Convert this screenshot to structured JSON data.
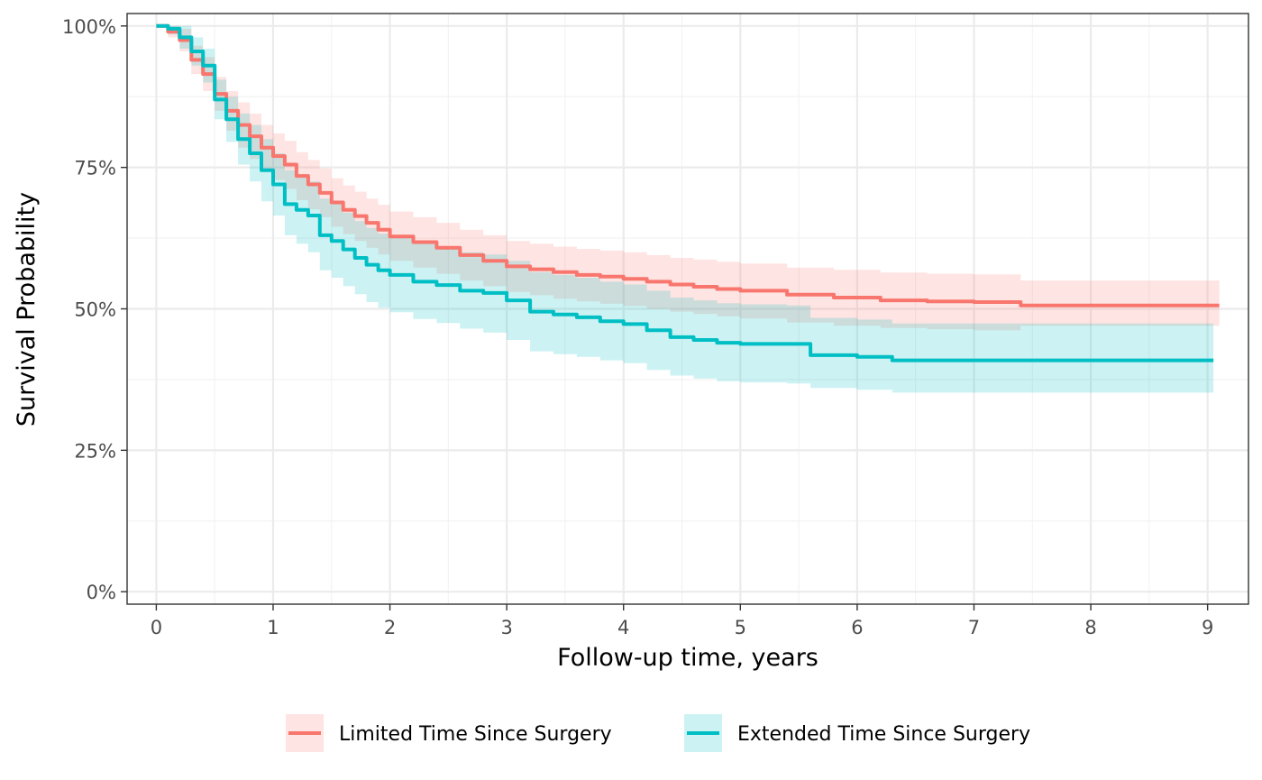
{
  "chart_data": {
    "type": "line",
    "subtype": "kaplan-meier step curves with confidence bands",
    "xlabel": "Follow-up time, years",
    "ylabel": "Survival Probability",
    "xlim": [
      -0.25,
      9.35
    ],
    "ylim": [
      -0.022,
      1.022
    ],
    "x_ticks": [
      0,
      1,
      2,
      3,
      4,
      5,
      6,
      7,
      8,
      9
    ],
    "x_tick_labels": [
      "0",
      "1",
      "2",
      "3",
      "4",
      "5",
      "6",
      "7",
      "8",
      "9"
    ],
    "y_ticks": [
      0,
      0.25,
      0.5,
      0.75,
      1.0
    ],
    "y_tick_labels": [
      "0%",
      "25%",
      "50%",
      "75%",
      "100%"
    ],
    "grid": true,
    "legend_position": "bottom",
    "series": [
      {
        "name": "Limited Time Since Surgery",
        "color": "#F8766D",
        "band_color": "#F8766D",
        "x": [
          0,
          0.1,
          0.2,
          0.3,
          0.4,
          0.5,
          0.6,
          0.7,
          0.8,
          0.9,
          1.0,
          1.1,
          1.2,
          1.3,
          1.4,
          1.5,
          1.6,
          1.7,
          1.8,
          1.9,
          2.0,
          2.2,
          2.4,
          2.6,
          2.8,
          3.0,
          3.2,
          3.4,
          3.6,
          3.8,
          4.0,
          4.2,
          4.4,
          4.6,
          4.8,
          5.0,
          5.4,
          5.8,
          6.2,
          6.6,
          7.0,
          7.4,
          8.0,
          9.1
        ],
        "y": [
          1.0,
          0.99,
          0.975,
          0.94,
          0.915,
          0.88,
          0.85,
          0.825,
          0.805,
          0.785,
          0.77,
          0.755,
          0.735,
          0.72,
          0.705,
          0.688,
          0.675,
          0.664,
          0.652,
          0.64,
          0.628,
          0.618,
          0.608,
          0.595,
          0.585,
          0.575,
          0.57,
          0.565,
          0.56,
          0.557,
          0.553,
          0.548,
          0.543,
          0.539,
          0.535,
          0.532,
          0.525,
          0.52,
          0.515,
          0.513,
          0.512,
          0.506,
          0.506,
          0.506
        ],
        "lower": [
          1.0,
          0.98,
          0.955,
          0.915,
          0.885,
          0.85,
          0.815,
          0.785,
          0.765,
          0.745,
          0.728,
          0.712,
          0.692,
          0.676,
          0.662,
          0.645,
          0.632,
          0.62,
          0.608,
          0.596,
          0.585,
          0.573,
          0.562,
          0.55,
          0.54,
          0.53,
          0.524,
          0.518,
          0.513,
          0.509,
          0.505,
          0.5,
          0.495,
          0.491,
          0.487,
          0.483,
          0.476,
          0.47,
          0.466,
          0.464,
          0.462,
          0.47,
          0.47,
          0.47
        ],
        "upper": [
          1.0,
          1.0,
          0.995,
          0.965,
          0.945,
          0.91,
          0.885,
          0.865,
          0.845,
          0.825,
          0.81,
          0.797,
          0.777,
          0.763,
          0.748,
          0.731,
          0.718,
          0.707,
          0.695,
          0.684,
          0.672,
          0.662,
          0.652,
          0.64,
          0.63,
          0.62,
          0.615,
          0.61,
          0.606,
          0.603,
          0.6,
          0.595,
          0.59,
          0.587,
          0.583,
          0.58,
          0.573,
          0.569,
          0.564,
          0.562,
          0.561,
          0.55,
          0.55,
          0.55
        ]
      },
      {
        "name": "Extended Time Since Surgery",
        "color": "#00BFC4",
        "band_color": "#00BFC4",
        "x": [
          0,
          0.1,
          0.2,
          0.3,
          0.4,
          0.5,
          0.6,
          0.7,
          0.8,
          0.9,
          1.0,
          1.1,
          1.2,
          1.3,
          1.4,
          1.5,
          1.6,
          1.7,
          1.8,
          1.9,
          2.0,
          2.2,
          2.4,
          2.6,
          2.8,
          3.0,
          3.2,
          3.4,
          3.6,
          3.8,
          4.0,
          4.2,
          4.4,
          4.6,
          4.8,
          5.0,
          5.4,
          5.6,
          6.0,
          6.3,
          7.0,
          8.0,
          9.05
        ],
        "y": [
          1.0,
          0.995,
          0.98,
          0.955,
          0.93,
          0.87,
          0.835,
          0.8,
          0.775,
          0.745,
          0.72,
          0.685,
          0.675,
          0.665,
          0.63,
          0.62,
          0.605,
          0.59,
          0.578,
          0.568,
          0.56,
          0.548,
          0.542,
          0.532,
          0.528,
          0.515,
          0.495,
          0.49,
          0.485,
          0.478,
          0.473,
          0.462,
          0.45,
          0.445,
          0.44,
          0.438,
          0.438,
          0.418,
          0.415,
          0.409,
          0.409,
          0.409,
          0.409
        ],
        "lower": [
          1.0,
          0.985,
          0.96,
          0.93,
          0.9,
          0.835,
          0.795,
          0.755,
          0.725,
          0.69,
          0.665,
          0.63,
          0.615,
          0.6,
          0.568,
          0.555,
          0.54,
          0.526,
          0.512,
          0.502,
          0.494,
          0.482,
          0.475,
          0.465,
          0.458,
          0.445,
          0.425,
          0.42,
          0.415,
          0.409,
          0.404,
          0.392,
          0.382,
          0.377,
          0.372,
          0.37,
          0.368,
          0.36,
          0.357,
          0.352,
          0.352,
          0.352,
          0.352
        ],
        "upper": [
          1.0,
          1.0,
          1.0,
          0.98,
          0.96,
          0.905,
          0.875,
          0.845,
          0.825,
          0.8,
          0.775,
          0.745,
          0.735,
          0.725,
          0.695,
          0.685,
          0.67,
          0.655,
          0.643,
          0.633,
          0.626,
          0.615,
          0.609,
          0.6,
          0.596,
          0.585,
          0.565,
          0.56,
          0.555,
          0.548,
          0.543,
          0.532,
          0.52,
          0.515,
          0.51,
          0.508,
          0.506,
          0.484,
          0.481,
          0.474,
          0.474,
          0.474,
          0.474
        ]
      }
    ]
  }
}
